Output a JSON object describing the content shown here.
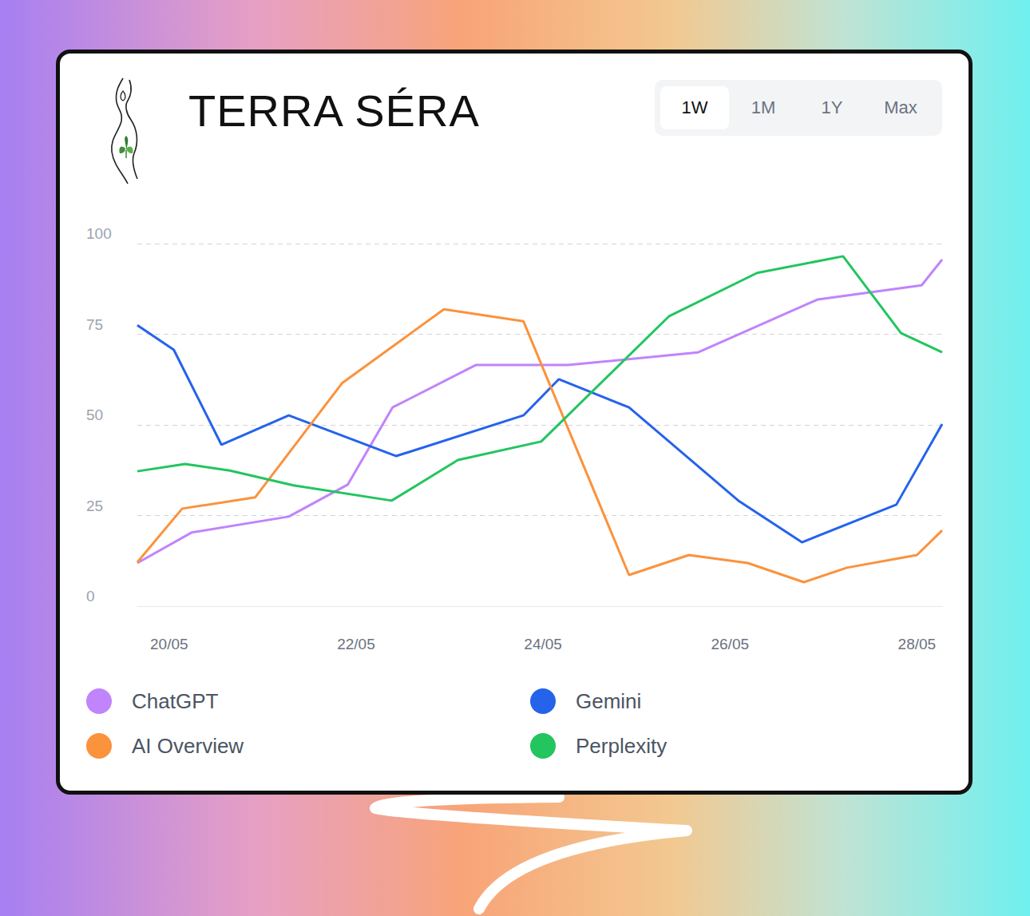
{
  "chart_data": {
    "type": "line",
    "title": "TERRA SÉRA",
    "xlim": [
      19.66,
      28.27
    ],
    "xticks": [
      {
        "value": 20,
        "label": "20/05"
      },
      {
        "value": 22,
        "label": "22/05"
      },
      {
        "value": 24,
        "label": "24/05"
      },
      {
        "value": 26,
        "label": "26/05"
      },
      {
        "value": 28,
        "label": "28/05"
      }
    ],
    "ylim": [
      0,
      100
    ],
    "yticks": [
      0,
      25,
      50,
      75,
      100
    ],
    "grid": true,
    "legend": "bottom",
    "series": [
      {
        "name": "ChatGPT",
        "color": "#c084fc",
        "x": [
          19.66,
          20.24,
          21.28,
          21.91,
          22.39,
          23.28,
          24.27,
          25.66,
          26.94,
          28.05,
          28.27
        ],
        "values": [
          11.9,
          20.3,
          24.7,
          33.5,
          54.8,
          66.5,
          66.5,
          70.0,
          84.6,
          88.5,
          95.6
        ]
      },
      {
        "name": "Gemini",
        "color": "#2563eb",
        "x": [
          19.66,
          20.05,
          20.56,
          21.28,
          22.43,
          23.79,
          24.17,
          24.92,
          26.1,
          26.77,
          27.78,
          28.27
        ],
        "values": [
          77.5,
          70.7,
          44.5,
          52.6,
          41.4,
          52.6,
          62.6,
          54.8,
          28.9,
          17.6,
          28.0,
          50.2
        ]
      },
      {
        "name": "AI Overview",
        "color": "#fb923c",
        "x": [
          19.66,
          20.14,
          20.92,
          21.85,
          22.94,
          23.79,
          24.92,
          25.56,
          26.19,
          26.79,
          27.25,
          28.0,
          28.27
        ],
        "values": [
          12.1,
          26.9,
          30.0,
          61.5,
          81.9,
          78.6,
          8.6,
          14.1,
          11.9,
          6.6,
          10.6,
          14.1,
          20.9
        ]
      },
      {
        "name": "Perplexity",
        "color": "#22c55e",
        "x": [
          19.66,
          20.17,
          20.65,
          21.33,
          22.38,
          23.09,
          23.98,
          25.35,
          26.29,
          27.21,
          27.83,
          28.27
        ],
        "values": [
          37.2,
          39.2,
          37.4,
          33.3,
          29.1,
          40.3,
          45.4,
          80.0,
          91.9,
          96.5,
          75.3,
          70.0
        ]
      }
    ]
  },
  "header": {
    "tabs": [
      "1W",
      "1M",
      "1Y",
      "Max"
    ],
    "selected": "1W"
  }
}
